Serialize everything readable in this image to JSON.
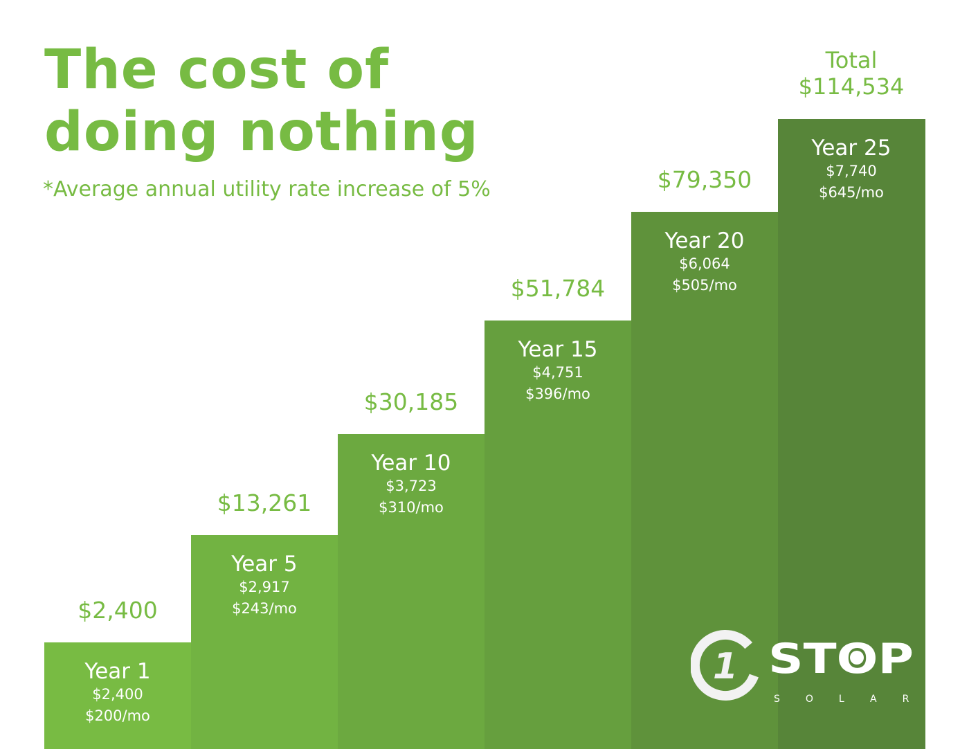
{
  "chart_data": {
    "type": "bar",
    "title": "The cost of doing nothing",
    "subtitle": "*Average annual utility rate increase of 5%",
    "categories": [
      "Year 1",
      "Year 5",
      "Year 10",
      "Year 15",
      "Year 20",
      "Year 25"
    ],
    "cumulative_labels": [
      "$2,400",
      "$13,261",
      "$30,185",
      "$51,784",
      "$79,350"
    ],
    "cumulative_values": [
      2400,
      13261,
      30185,
      51784,
      79350,
      114534
    ],
    "annual_labels": [
      "$2,400",
      "$2,917",
      "$3,723",
      "$4,751",
      "$6,064",
      "$7,740"
    ],
    "annual_values": [
      2400,
      2917,
      3723,
      4751,
      6064,
      7740
    ],
    "monthly_labels": [
      "$200/mo",
      "$243/mo",
      "$310/mo",
      "$396/mo",
      "$505/mo",
      "$645/mo"
    ],
    "monthly_values": [
      200,
      243,
      310,
      396,
      505,
      645
    ],
    "total_label": "Total",
    "total_value": "$114,534",
    "colors": [
      "#78bb43",
      "#72b342",
      "#6ca940",
      "#669f3e",
      "#5f923b",
      "#578539"
    ]
  },
  "logo": {
    "main": "STOP",
    "numeral": "1",
    "sub": "SOLAR"
  }
}
